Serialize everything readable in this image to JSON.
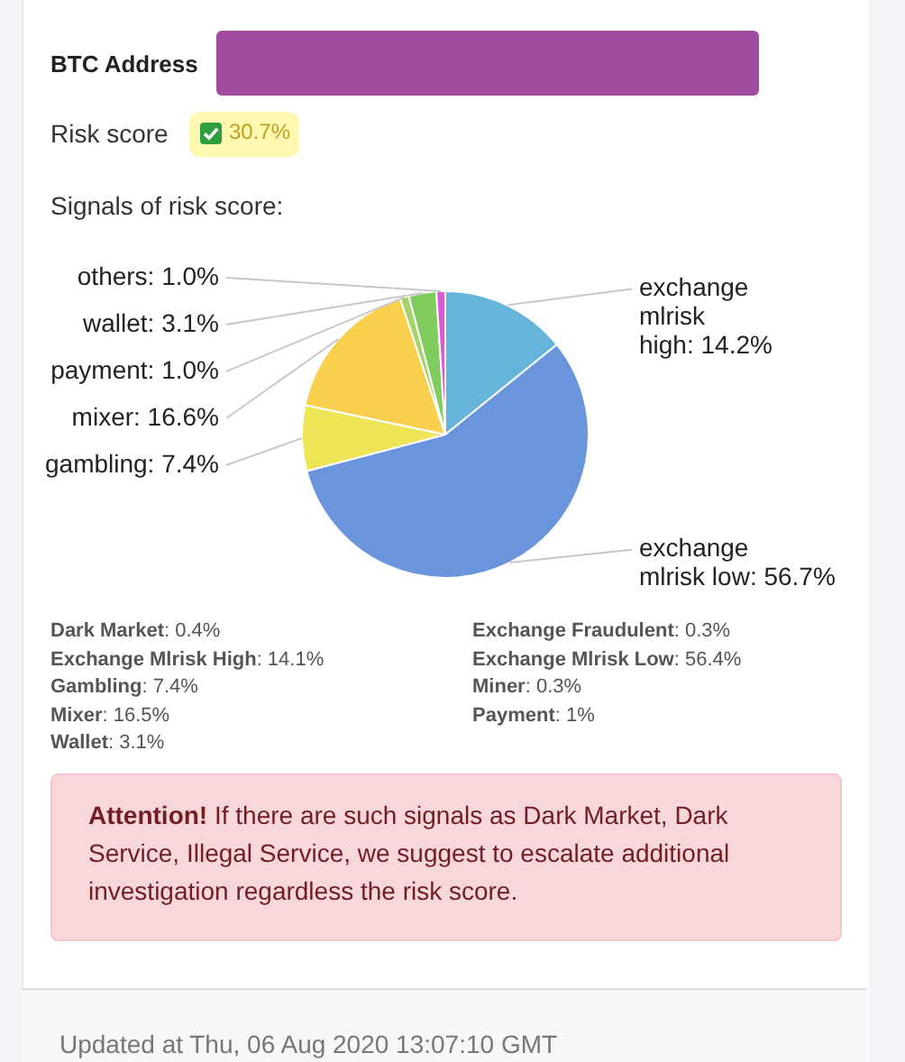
{
  "chart_data": {
    "type": "pie",
    "title": "Signals of risk score:",
    "categories": [
      "exchange mlrisk high",
      "exchange mlrisk low",
      "gambling",
      "mixer",
      "payment",
      "wallet",
      "others"
    ],
    "value_labels": [
      "14.2%",
      "56.7%",
      "7.4%",
      "16.6%",
      "1.0%",
      "3.1%",
      "1.0%"
    ],
    "values": [
      14.2,
      56.7,
      7.4,
      16.6,
      1.0,
      3.1,
      1.0
    ],
    "colors": [
      "#67b4da",
      "#6a95dc",
      "#ede555",
      "#f8d04e",
      "#a6d46c",
      "#7ecd5e",
      "#d95bd1"
    ],
    "legend": false,
    "annotations": [
      "BTC Address",
      "Risk score",
      "30.7%",
      "Dark Market: 0.4%",
      "Exchange Fraudulent: 0.3%",
      "Exchange Mlrisk High: 14.1%",
      "Exchange Mlrisk Low: 56.4%",
      "Gambling: 7.4%",
      "Miner: 0.3%",
      "Mixer: 16.5%",
      "Payment: 1%",
      "Wallet: 3.1%",
      "Attention! If there are such signals as Dark Market, Dark Service, Illegal Service, we suggest to escalate additional investigation regardless the risk score.",
      "Updated at Thu, 06 Aug 2020 13:07:10 GMT"
    ]
  }
}
